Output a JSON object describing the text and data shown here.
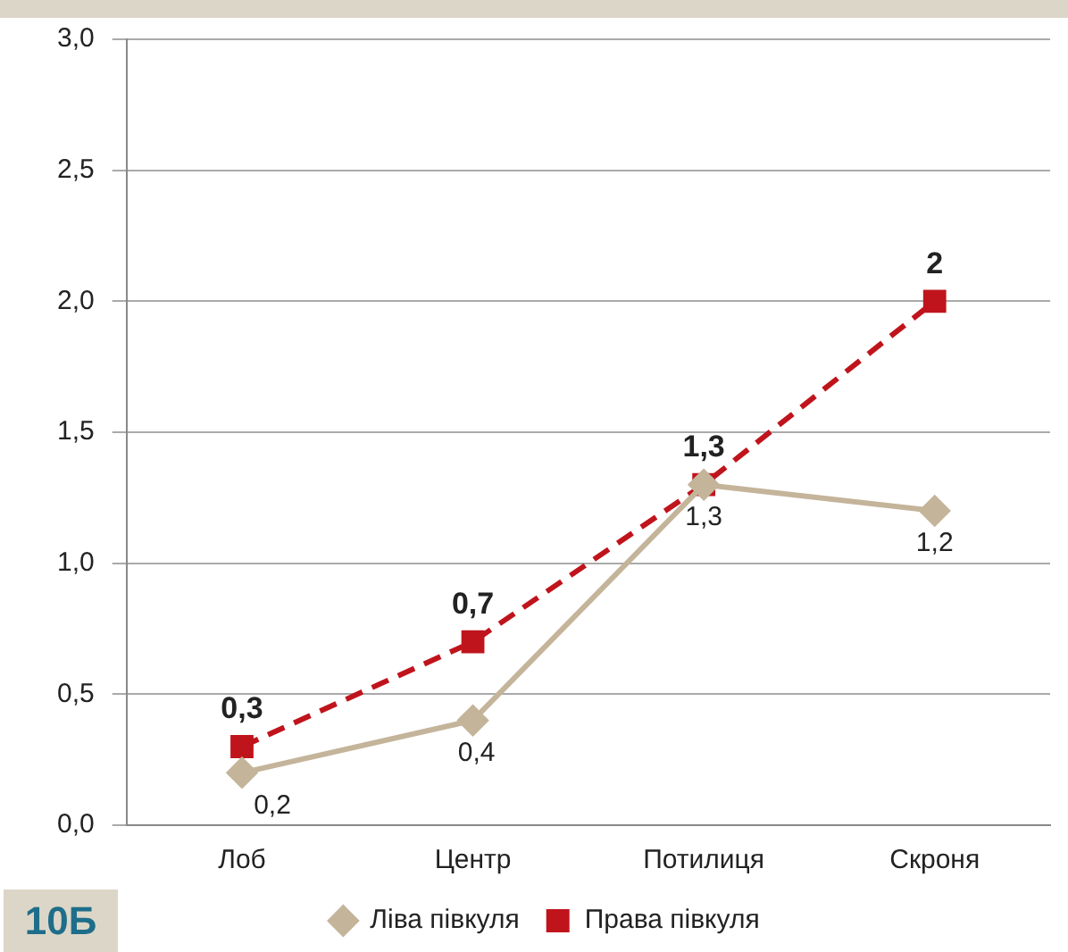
{
  "chart_data": {
    "type": "line",
    "categories": [
      "Лоб",
      "Центр",
      "Потилиця",
      "Скроня"
    ],
    "series": [
      {
        "name": "Ліва півкуля",
        "color": "#c4b49a",
        "values": [
          0.2,
          0.4,
          1.3,
          1.2
        ],
        "marker": "diamond",
        "line_style": "solid",
        "value_labels": [
          "0,2",
          "0,4",
          "1,3",
          "1,2"
        ]
      },
      {
        "name": "Права півкуля",
        "color": "#c0141c",
        "values": [
          0.3,
          0.7,
          1.3,
          2
        ],
        "marker": "square",
        "line_style": "dashed",
        "value_labels": [
          "0,3",
          "0,7",
          "1,3",
          "2"
        ]
      }
    ],
    "ylim": [
      0,
      3
    ],
    "yticks": [
      {
        "value": 0,
        "label": "0,0"
      },
      {
        "value": 0.5,
        "label": "0,5"
      },
      {
        "value": 1,
        "label": "1,0"
      },
      {
        "value": 1.5,
        "label": "1,5"
      },
      {
        "value": 2,
        "label": "2,0"
      },
      {
        "value": 2.5,
        "label": "2,5"
      },
      {
        "value": 3,
        "label": "3,0"
      }
    ],
    "grid": "y",
    "legend": "bottom",
    "annotations": [
      "10Б"
    ]
  }
}
